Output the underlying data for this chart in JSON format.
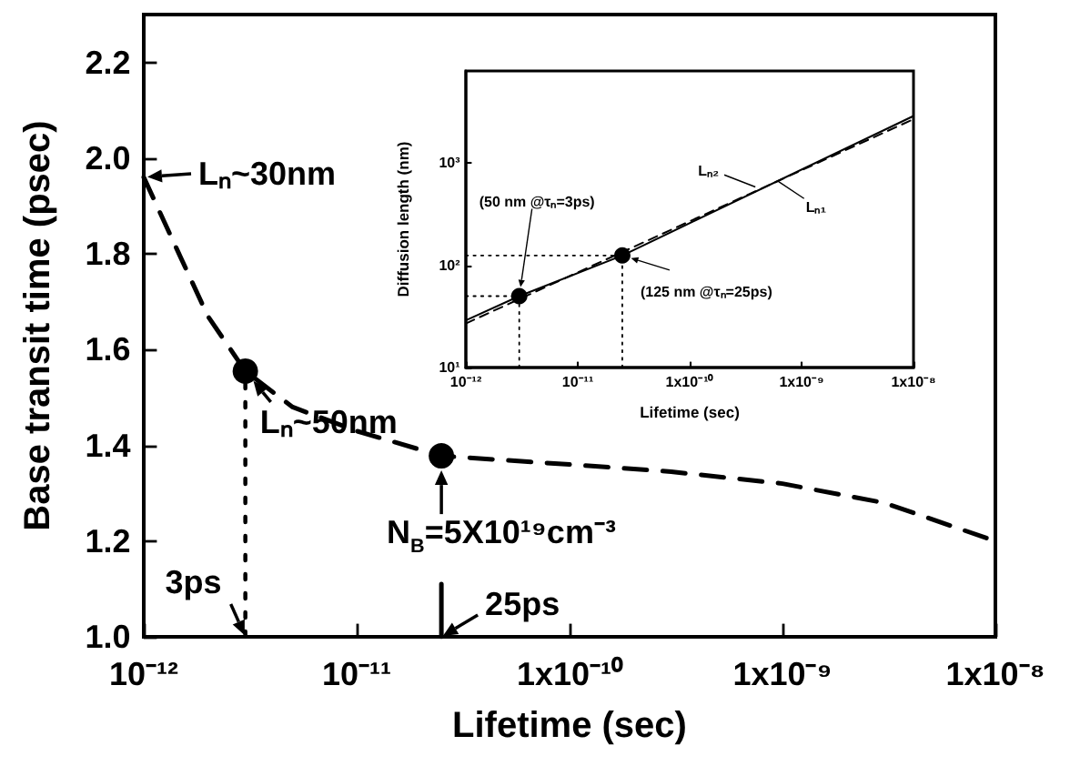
{
  "chart_data": [
    {
      "type": "line",
      "xlabel": "Lifetime (sec)",
      "ylabel": "Base transit time (psec)",
      "log": "x",
      "xlim": [
        1e-12,
        1e-08
      ],
      "ylim": [
        1.0,
        2.3
      ],
      "xticks": [
        {
          "value": 1e-12,
          "label": "10⁻¹²"
        },
        {
          "value": 1e-11,
          "label": "10⁻¹¹"
        },
        {
          "value": 1e-10,
          "label": "1x10⁻¹⁰"
        },
        {
          "value": 1e-09,
          "label": "1x10⁻⁹"
        },
        {
          "value": 1e-08,
          "label": "1x10⁻⁸"
        }
      ],
      "yticks": [
        {
          "value": 1.0,
          "label": "1.0"
        },
        1.2,
        1.4,
        1.6,
        1.8,
        {
          "value": 2.0,
          "label": "2.0"
        },
        2.2
      ],
      "series": [
        {
          "type": "line",
          "line_style": "dashed",
          "marker": "none",
          "color": "#000000",
          "x": [
            1e-12,
            1.5e-12,
            2e-12,
            3e-12,
            5e-12,
            1e-11,
            2.5e-11,
            1e-10,
            3e-10,
            1e-09,
            3e-09,
            1e-08
          ],
          "values": [
            1.96,
            1.79,
            1.67,
            1.555,
            1.48,
            1.43,
            1.378,
            1.36,
            1.345,
            1.32,
            1.28,
            1.2
          ]
        },
        {
          "type": "scatter",
          "marker": "circle",
          "color": "#000000",
          "x": [
            3e-12,
            2.5e-11
          ],
          "values": [
            1.555,
            1.378
          ]
        },
        {
          "type": "line",
          "line_style": "dotted",
          "marker": "none",
          "color": "#000000",
          "x": [
            3e-12,
            3e-12
          ],
          "values": [
            1.0,
            1.555
          ]
        },
        {
          "type": "line",
          "line_style": "solid",
          "marker": "none",
          "color": "#000000",
          "x": [
            2.5e-11,
            2.5e-11
          ],
          "values": [
            1.0,
            1.11
          ]
        }
      ],
      "annotations": [
        {
          "text": "Lₙ~30nm",
          "x": 1e-12,
          "y": 1.96
        },
        {
          "text": "Lₙ~50nm",
          "x": 3e-12,
          "y": 1.555
        },
        {
          "text": "N$_{B}$=5X10¹⁹cm⁻³",
          "x": 2.5e-11,
          "y": 1.378
        },
        {
          "text": "3ps",
          "x": 3e-12,
          "y": 1.0
        },
        {
          "text": "25ps",
          "x": 2.5e-11,
          "y": 1.0
        }
      ]
    },
    {
      "type": "line",
      "xlabel": "Lifetime (sec)",
      "ylabel": "Diffusion length (nm)",
      "log": "xy",
      "xlim": [
        1e-12,
        1e-08
      ],
      "ylim": [
        10,
        8000
      ],
      "xticks": [
        {
          "value": 1e-12,
          "label": "10⁻¹²"
        },
        {
          "value": 1e-11,
          "label": "10⁻¹¹"
        },
        {
          "value": 1e-10,
          "label": "1x10⁻¹⁰"
        },
        {
          "value": 1e-09,
          "label": "1x10⁻⁹"
        },
        {
          "value": 1e-08,
          "label": "1x10⁻⁸"
        }
      ],
      "yticks": [
        {
          "value": 10,
          "label": "10¹"
        },
        {
          "value": 100,
          "label": "10²"
        },
        {
          "value": 1000,
          "label": "10³"
        }
      ],
      "series": [
        {
          "type": "line",
          "line_style": "solid",
          "marker": "none",
          "color": "#000000",
          "x": [
            1e-12,
            3e-12,
            2.5e-11,
            1e-08
          ],
          "values": [
            29,
            50,
            125,
            2900
          ]
        },
        {
          "type": "line",
          "line_style": "dashed",
          "marker": "none",
          "color": "#000000",
          "x": [
            1e-12,
            1e-08
          ],
          "values": [
            27,
            2700
          ]
        },
        {
          "type": "scatter",
          "marker": "circle",
          "color": "#000000",
          "x": [
            3e-12,
            2.5e-11
          ],
          "values": [
            50,
            125
          ]
        },
        {
          "type": "line",
          "line_style": "dotted",
          "marker": "none",
          "color": "#000000",
          "x": [
            3e-12,
            3e-12
          ],
          "values": [
            10,
            50
          ]
        },
        {
          "type": "line",
          "line_style": "dotted",
          "marker": "none",
          "color": "#000000",
          "x": [
            2.5e-11,
            2.5e-11
          ],
          "values": [
            10,
            125
          ]
        },
        {
          "type": "line",
          "line_style": "dotted",
          "marker": "none",
          "color": "#000000",
          "x": [
            1e-12,
            3e-12
          ],
          "values": [
            50,
            50
          ]
        },
        {
          "type": "line",
          "line_style": "dotted",
          "marker": "none",
          "color": "#000000",
          "x": [
            1e-12,
            2.5e-11
          ],
          "values": [
            125,
            125
          ]
        }
      ],
      "annotations": [
        {
          "text": "(50 nm @τₙ=3ps)",
          "x": 3e-12,
          "y": 50
        },
        {
          "text": "(125 nm @τₙ=25ps)",
          "x": 2.5e-11,
          "y": 125
        },
        {
          "text": "Lₙ₂",
          "x": 4e-10,
          "y": 577
        },
        {
          "text": "Lₙ₁",
          "x": 6e-10,
          "y": 680
        }
      ]
    }
  ]
}
